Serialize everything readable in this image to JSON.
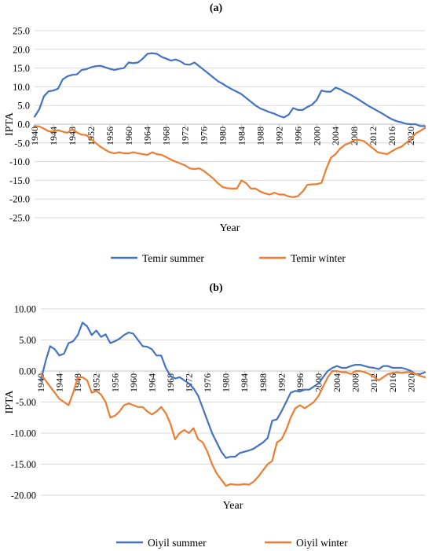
{
  "chart_data": [
    {
      "type": "line",
      "panel_label": "(a)",
      "xlabel": "Year",
      "ylabel": "IPTA",
      "ylim": [
        -25,
        25
      ],
      "yticks": [
        "25.0",
        "20.0",
        "15.0",
        "10.0",
        "5.0",
        "0.0",
        "-5.0",
        "-10.0",
        "-15.0",
        "-20.0",
        "-25.0"
      ],
      "ytick_values": [
        25,
        20,
        15,
        10,
        5,
        0,
        -5,
        -10,
        -15,
        -20,
        -25
      ],
      "xticks": [
        "1940",
        "1944",
        "1948",
        "1952",
        "1956",
        "1960",
        "1964",
        "1968",
        "1972",
        "1976",
        "1980",
        "1984",
        "1988",
        "1992",
        "1996",
        "2000",
        "2004",
        "2008",
        "2012",
        "2016",
        "2020"
      ],
      "x_start": 1940,
      "x_end": 2023,
      "grid": "horizontal",
      "legend_position": "bottom",
      "colors": {
        "summer": "#4472C4",
        "winter": "#ED7D31"
      },
      "series": [
        {
          "name": "Temir summer",
          "color": "#4472C4",
          "values": [
            2.0,
            4.0,
            7.5,
            8.8,
            9.0,
            9.5,
            12.0,
            12.8,
            13.2,
            13.3,
            14.5,
            14.7,
            15.2,
            15.5,
            15.6,
            15.2,
            14.8,
            14.5,
            14.8,
            15.0,
            16.5,
            16.3,
            16.5,
            17.5,
            18.8,
            19.0,
            18.8,
            18.0,
            17.5,
            17.0,
            17.3,
            16.8,
            16.0,
            15.9,
            16.5,
            15.5,
            14.5,
            13.5,
            12.5,
            11.5,
            10.8,
            10.0,
            9.3,
            8.7,
            8.0,
            7.0,
            6.0,
            5.0,
            4.2,
            3.7,
            3.2,
            2.8,
            2.2,
            1.8,
            2.5,
            4.3,
            3.8,
            3.8,
            4.6,
            5.2,
            6.5,
            9.0,
            8.7,
            8.7,
            9.8,
            9.3,
            8.6,
            8.0,
            7.3,
            6.5,
            5.7,
            4.9,
            4.2,
            3.5,
            2.8,
            2.0,
            1.3,
            0.8,
            0.5,
            0.1,
            0.0,
            0.0,
            -0.5,
            -0.5
          ]
        },
        {
          "name": "Temir winter",
          "color": "#ED7D31",
          "values": [
            -0.5,
            -0.6,
            -1.2,
            -1.9,
            -2.0,
            -1.6,
            -2.0,
            -2.3,
            -1.3,
            -2.2,
            -2.8,
            -2.9,
            -4.0,
            -5.0,
            -6.0,
            -6.8,
            -7.5,
            -7.8,
            -7.5,
            -7.8,
            -7.8,
            -7.5,
            -7.8,
            -8.0,
            -8.2,
            -7.5,
            -8.0,
            -8.2,
            -8.8,
            -9.5,
            -10.0,
            -10.5,
            -11.0,
            -11.8,
            -12.0,
            -11.8,
            -12.5,
            -13.5,
            -14.5,
            -15.8,
            -16.8,
            -17.1,
            -17.2,
            -17.2,
            -15.0,
            -15.8,
            -17.2,
            -17.2,
            -18.0,
            -18.5,
            -18.8,
            -18.3,
            -18.8,
            -18.8,
            -19.3,
            -19.5,
            -19.2,
            -18.0,
            -16.2,
            -16.1,
            -16.0,
            -15.7,
            -12.0,
            -9.0,
            -8.0,
            -6.5,
            -5.5,
            -5.0,
            -4.2,
            -4.2,
            -4.5,
            -5.5,
            -6.5,
            -7.5,
            -7.8,
            -8.0,
            -7.2,
            -6.5,
            -6.0,
            -5.0,
            -4.0,
            -2.5,
            -1.8,
            -1.0
          ]
        }
      ]
    },
    {
      "type": "line",
      "panel_label": "(b)",
      "xlabel": "Year",
      "ylabel": "IPTA",
      "ylim": [
        -20,
        10
      ],
      "yticks": [
        "10.00",
        "5.00",
        "0.00",
        "-5.00",
        "-10.00",
        "-15.00",
        "-20.00"
      ],
      "ytick_values": [
        10,
        5,
        0,
        -5,
        -10,
        -15,
        -20
      ],
      "xticks": [
        "1940",
        "1944",
        "1948",
        "1952",
        "1956",
        "1960",
        "1964",
        "1968",
        "1972",
        "1976",
        "1980",
        "1984",
        "1988",
        "1992",
        "1996",
        "2000",
        "2004",
        "2008",
        "2012",
        "2016",
        "2020"
      ],
      "x_start": 1940,
      "x_end": 2023,
      "grid": "horizontal",
      "legend_position": "bottom",
      "colors": {
        "summer": "#4472C4",
        "winter": "#ED7D31"
      },
      "series": [
        {
          "name": "Oiyil summer",
          "color": "#4472C4",
          "values": [
            -1.5,
            1.5,
            4.0,
            3.5,
            2.5,
            2.8,
            4.5,
            4.8,
            5.8,
            7.8,
            7.2,
            5.8,
            6.5,
            5.5,
            5.9,
            4.5,
            4.8,
            5.2,
            5.8,
            6.2,
            6.0,
            5.0,
            4.0,
            3.9,
            3.5,
            2.5,
            2.5,
            0.5,
            -0.8,
            -1.2,
            -1.0,
            -1.5,
            -2.0,
            -2.8,
            -4.0,
            -6.0,
            -8.0,
            -10.0,
            -11.5,
            -13.0,
            -14.0,
            -13.8,
            -13.8,
            -13.2,
            -13.0,
            -12.8,
            -12.5,
            -12.0,
            -11.5,
            -10.8,
            -8.0,
            -7.8,
            -6.5,
            -5.0,
            -3.5,
            -3.2,
            -3.3,
            -3.0,
            -3.0,
            -2.5,
            -2.0,
            -1.0,
            0.0,
            0.5,
            0.8,
            0.5,
            0.5,
            0.8,
            1.0,
            1.0,
            0.8,
            0.6,
            0.5,
            0.3,
            0.8,
            0.8,
            0.5,
            0.5,
            0.5,
            0.3,
            0.0,
            -0.5,
            -0.5,
            -0.2
          ]
        },
        {
          "name": "Oiyil winter",
          "color": "#ED7D31",
          "values": [
            -0.5,
            -1.5,
            -2.5,
            -3.5,
            -4.5,
            -5.0,
            -5.5,
            -3.5,
            -1.0,
            -1.0,
            -1.5,
            -3.5,
            -3.2,
            -3.8,
            -5.0,
            -7.5,
            -7.2,
            -6.5,
            -5.5,
            -5.2,
            -5.5,
            -5.8,
            -5.8,
            -6.5,
            -7.0,
            -6.5,
            -5.8,
            -6.8,
            -8.5,
            -11.0,
            -10.0,
            -9.5,
            -10.0,
            -9.2,
            -11.0,
            -11.5,
            -13.0,
            -15.0,
            -16.5,
            -17.5,
            -18.5,
            -18.2,
            -18.3,
            -18.3,
            -18.2,
            -18.3,
            -17.8,
            -17.0,
            -16.0,
            -15.0,
            -14.5,
            -11.5,
            -11.0,
            -9.5,
            -7.5,
            -6.0,
            -5.5,
            -6.0,
            -5.5,
            -5.0,
            -4.0,
            -2.5,
            -1.0,
            0.0,
            0.0,
            -0.2,
            -0.2,
            -0.5,
            0.0,
            0.0,
            -0.2,
            -0.5,
            -1.0,
            -1.5,
            -1.0,
            -0.5,
            -0.3,
            -0.2,
            -0.3,
            -0.2,
            -0.2,
            -0.5,
            -0.8,
            -1.0
          ]
        }
      ]
    }
  ]
}
